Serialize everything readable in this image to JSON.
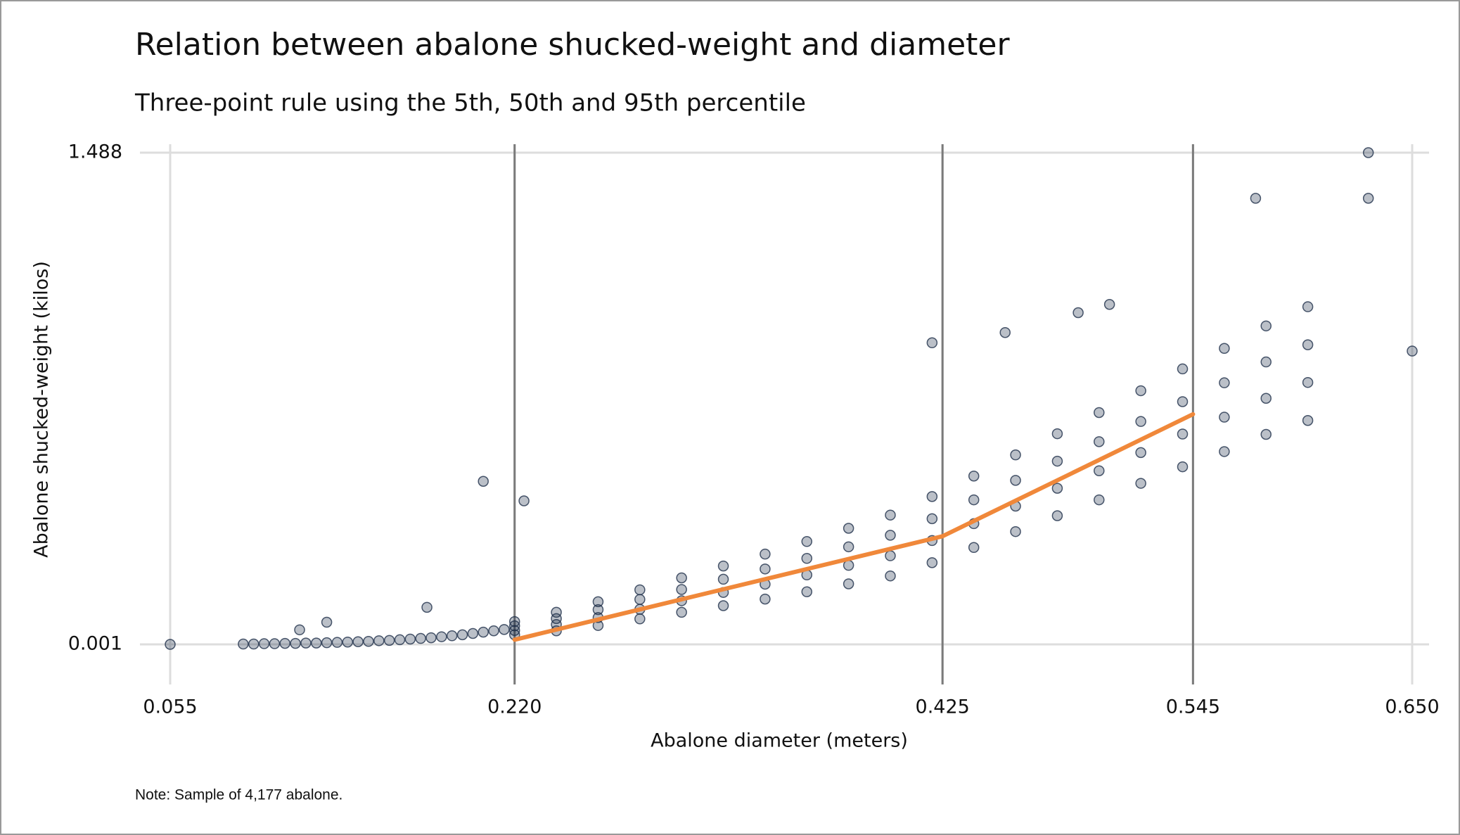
{
  "chart_data": {
    "type": "scatter",
    "title": "Relation between abalone shucked-weight and diameter",
    "subtitle": "Three-point rule using the 5th, 50th and 95th percentile",
    "xlabel": "Abalone diameter (meters)",
    "ylabel": "Abalone shucked-weight (kilos)",
    "note": "Note: Sample of 4,177 abalone.",
    "xlim": [
      0.055,
      0.65
    ],
    "ylim": [
      0.001,
      1.488
    ],
    "xticks": [
      0.055,
      {
        "value": 0.22,
        "label": "0.220"
      },
      0.425,
      0.545,
      {
        "value": 0.65,
        "label": "0.650"
      }
    ],
    "yticks": [
      0.001,
      1.488
    ],
    "grid": true,
    "reference_lines": {
      "color": "#7a7a7a",
      "x": [
        0.22,
        0.425,
        0.545
      ]
    },
    "fit_line": {
      "color": "#f0883a",
      "x": [
        0.22,
        0.425,
        0.545
      ],
      "y": [
        0.015,
        0.328,
        0.697
      ]
    },
    "series": [
      {
        "color": "#1f2f4a",
        "x": [
          0.055,
          0.09,
          0.095,
          0.1,
          0.105,
          0.11,
          0.115,
          0.12,
          0.125,
          0.13,
          0.135,
          0.14,
          0.145,
          0.15,
          0.155,
          0.16,
          0.165,
          0.17,
          0.175,
          0.18,
          0.185,
          0.19,
          0.195,
          0.2,
          0.205,
          0.21,
          0.215,
          0.13,
          0.117,
          0.178,
          0.205,
          0.2245,
          0.629,
          0.629,
          0.65,
          0.575,
          0.42,
          0.455,
          0.49,
          0.505,
          0.22,
          0.22,
          0.22,
          0.22,
          0.24,
          0.24,
          0.24,
          0.24,
          0.26,
          0.26,
          0.26,
          0.26,
          0.28,
          0.28,
          0.28,
          0.28,
          0.3,
          0.3,
          0.3,
          0.3,
          0.32,
          0.32,
          0.32,
          0.32,
          0.34,
          0.34,
          0.34,
          0.34,
          0.36,
          0.36,
          0.36,
          0.36,
          0.38,
          0.38,
          0.38,
          0.38,
          0.4,
          0.4,
          0.4,
          0.4,
          0.42,
          0.42,
          0.42,
          0.42,
          0.44,
          0.44,
          0.44,
          0.44,
          0.46,
          0.46,
          0.46,
          0.46,
          0.48,
          0.48,
          0.48,
          0.48,
          0.5,
          0.5,
          0.5,
          0.5,
          0.52,
          0.52,
          0.52,
          0.52,
          0.54,
          0.54,
          0.54,
          0.54,
          0.56,
          0.56,
          0.56,
          0.56,
          0.58,
          0.58,
          0.58,
          0.58,
          0.6,
          0.6,
          0.6,
          0.6
        ],
        "y": [
          0.001,
          0.002,
          0.002,
          0.003,
          0.003,
          0.004,
          0.004,
          0.005,
          0.005,
          0.006,
          0.007,
          0.008,
          0.009,
          0.01,
          0.012,
          0.013,
          0.015,
          0.017,
          0.019,
          0.021,
          0.024,
          0.027,
          0.03,
          0.034,
          0.038,
          0.042,
          0.046,
          0.068,
          0.045,
          0.113,
          0.494,
          0.435,
          1.488,
          1.35,
          0.888,
          1.35,
          0.913,
          0.944,
          1.004,
          1.029,
          0.03,
          0.043,
          0.057,
          0.07,
          0.042,
          0.061,
          0.079,
          0.098,
          0.058,
          0.082,
          0.106,
          0.13,
          0.078,
          0.107,
          0.137,
          0.166,
          0.098,
          0.133,
          0.167,
          0.202,
          0.118,
          0.158,
          0.198,
          0.238,
          0.138,
          0.183,
          0.229,
          0.274,
          0.16,
          0.211,
          0.261,
          0.312,
          0.184,
          0.24,
          0.296,
          0.352,
          0.208,
          0.269,
          0.331,
          0.392,
          0.248,
          0.315,
          0.381,
          0.448,
          0.294,
          0.366,
          0.438,
          0.51,
          0.342,
          0.419,
          0.497,
          0.574,
          0.39,
          0.473,
          0.555,
          0.638,
          0.438,
          0.526,
          0.614,
          0.702,
          0.488,
          0.581,
          0.675,
          0.768,
          0.538,
          0.637,
          0.735,
          0.834,
          0.584,
          0.688,
          0.792,
          0.896,
          0.636,
          0.745,
          0.855,
          0.964,
          0.678,
          0.793,
          0.907,
          1.022
        ]
      }
    ]
  }
}
